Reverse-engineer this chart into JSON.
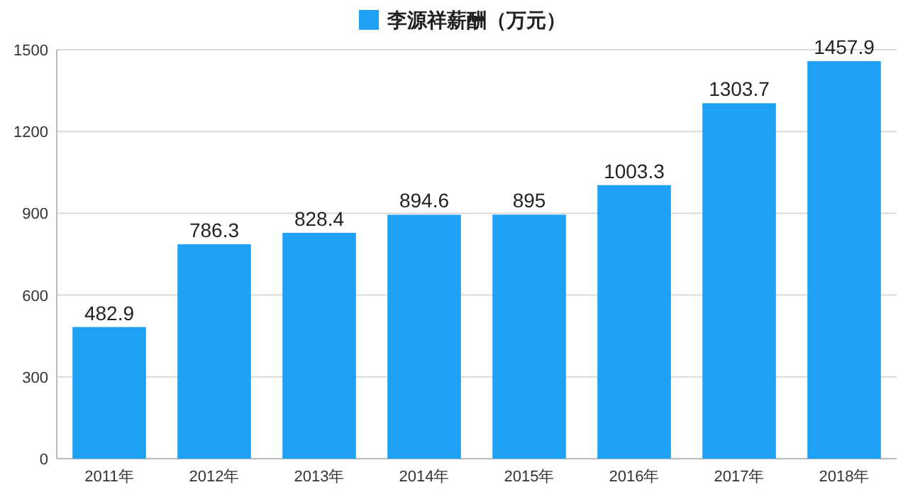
{
  "chart_data": {
    "type": "bar",
    "categories": [
      "2011年",
      "2012年",
      "2013年",
      "2014年",
      "2015年",
      "2016年",
      "2017年",
      "2018年"
    ],
    "series": [
      {
        "name": "李源祥薪酬（万元）",
        "color": "#1ea1f2",
        "values": [
          482.9,
          786.3,
          828.4,
          894.6,
          895,
          1003.3,
          1303.7,
          1457.9
        ]
      }
    ],
    "ylim": [
      0,
      1500
    ],
    "yticks": [
      0,
      300,
      600,
      900,
      1200,
      1500
    ],
    "grid": "y",
    "legend": "top",
    "data_labels": true
  }
}
